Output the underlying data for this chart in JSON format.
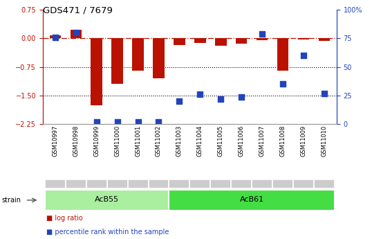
{
  "title": "GDS471 / 7679",
  "samples": [
    "GSM10997",
    "GSM10998",
    "GSM10999",
    "GSM11000",
    "GSM11001",
    "GSM11002",
    "GSM11003",
    "GSM11004",
    "GSM11005",
    "GSM11006",
    "GSM11007",
    "GSM11008",
    "GSM11009",
    "GSM11010"
  ],
  "log_ratio": [
    0.08,
    0.22,
    -1.75,
    -1.2,
    -0.85,
    -1.05,
    -0.18,
    -0.12,
    -0.2,
    -0.15,
    -0.05,
    -0.85,
    -0.04,
    -0.06
  ],
  "percentile": [
    76,
    80,
    2,
    2,
    2,
    2,
    20,
    26,
    22,
    24,
    79,
    35,
    60,
    27
  ],
  "ylim_left": [
    -2.25,
    0.75
  ],
  "ylim_right": [
    0,
    100
  ],
  "yticks_left": [
    -2.25,
    -1.5,
    -0.75,
    0,
    0.75
  ],
  "yticks_right": [
    0,
    25,
    50,
    75,
    100
  ],
  "strain_groups": [
    {
      "label": "AcB55",
      "start": 0,
      "end": 5
    },
    {
      "label": "AcB61",
      "start": 6,
      "end": 13
    }
  ],
  "bar_color": "#bb1100",
  "dot_color": "#2244bb",
  "bar_width": 0.55,
  "dot_size": 28,
  "bg_color": "#ffffff",
  "strain_colors": [
    "#aaeea0",
    "#44dd44"
  ],
  "sample_box_color": "#cccccc",
  "legend_square_red": "#bb1100",
  "legend_square_blue": "#2244bb"
}
